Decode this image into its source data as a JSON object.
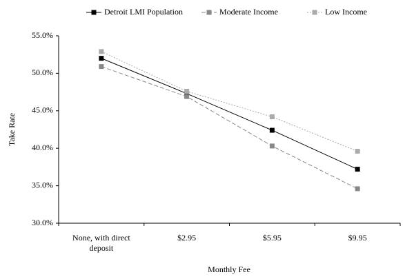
{
  "chart_data": {
    "type": "line",
    "x_label": "Monthly Fee",
    "y_label": "Take Rate",
    "categories": [
      "None, with direct deposit",
      "$2.95",
      "$5.95",
      "$9.95"
    ],
    "series": [
      {
        "name": "Detroit LMI Population",
        "color": "#000000",
        "line_style": "solid",
        "values": [
          52.0,
          47.3,
          42.4,
          37.2
        ]
      },
      {
        "name": "Moderate Income",
        "color": "#888888",
        "line_style": "dashed",
        "values": [
          50.9,
          46.9,
          40.3,
          34.6
        ]
      },
      {
        "name": "Low Income",
        "color": "#aaaaaa",
        "line_style": "dotted",
        "values": [
          52.9,
          47.6,
          44.2,
          39.6
        ]
      }
    ],
    "ylim": [
      30,
      55
    ],
    "yticks": [
      {
        "value": 30,
        "label": "30.0%"
      },
      {
        "value": 35,
        "label": "35.0%"
      },
      {
        "value": 40,
        "label": "40.0%"
      },
      {
        "value": 45,
        "label": "45.0%"
      },
      {
        "value": 50,
        "label": "50.0%"
      },
      {
        "value": 55,
        "label": "55.0%"
      }
    ],
    "legend": "top"
  }
}
